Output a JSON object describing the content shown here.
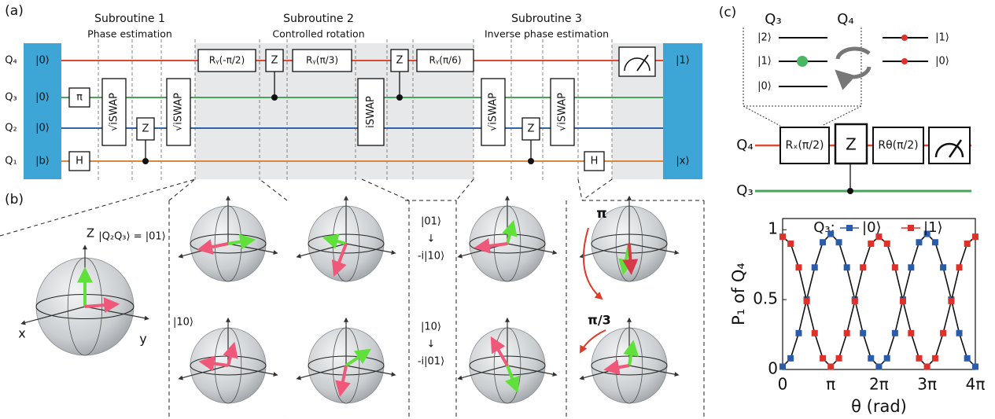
{
  "panel_a": {
    "label": "(a)",
    "subroutines": [
      {
        "title": "Subroutine 1",
        "subtitle": "Phase estimation"
      },
      {
        "title": "Subroutine 2",
        "subtitle": "Controlled rotation"
      },
      {
        "title": "Subroutine 3",
        "subtitle": "Inverse phase estimation"
      }
    ],
    "qubits": [
      "Q₄",
      "Q₃",
      "Q₂",
      "Q₁"
    ],
    "inputs": [
      "|0⟩",
      "|0⟩",
      "|0⟩",
      "|b⟩"
    ],
    "outputs": [
      "|1⟩",
      "|x⟩"
    ],
    "gates": [
      "π",
      "H",
      "√iSWAP",
      "Z",
      "√iSWAP",
      "Rᵧ(-π/2)",
      "Z",
      "Rᵧ(π/3)",
      "iSWAP",
      "Z",
      "Rᵧ(π/6)",
      "√iSWAP",
      "Z",
      "√iSWAP",
      "H"
    ]
  },
  "panel_b": {
    "label": "(b)",
    "axis_z": "Z",
    "axis_x": "x",
    "axis_y": "y",
    "state_top": "|Q₂Q₃⟩ = |01⟩",
    "state_bottom": "|10⟩",
    "swap_top": [
      "|01⟩",
      "↓",
      "-i|10⟩"
    ],
    "swap_bottom": [
      "|10⟩",
      "↓",
      "-i|01⟩"
    ],
    "angle_top": "π",
    "angle_bottom": "π/3"
  },
  "panel_c": {
    "label": "(c)",
    "level_diagram": {
      "q3": "Q₃",
      "q4": "Q₄",
      "q3_levels": [
        "|2⟩",
        "|1⟩",
        "|0⟩"
      ],
      "q4_levels": [
        "|1⟩",
        "|0⟩"
      ]
    },
    "circuit": {
      "qubits": [
        "Q₄",
        "Q₃"
      ],
      "gates": [
        "Rₓ(π/2)",
        "Z",
        "Rθ(π/2)"
      ]
    }
  },
  "chart_data": {
    "type": "scatter",
    "xlabel": "θ (rad)",
    "ylabel": "P₁ of Q₄",
    "legend_title": "Q₃:",
    "x": [
      0,
      0.52,
      1.05,
      1.57,
      2.09,
      2.62,
      3.14,
      3.67,
      4.19,
      4.71,
      5.24,
      5.76,
      6.28,
      6.81,
      7.33,
      7.85,
      8.38,
      8.9,
      9.42,
      9.95,
      10.47,
      11.0,
      11.52,
      12.04,
      12.57
    ],
    "series": [
      {
        "name": "|0⟩",
        "color": "#2a5caa",
        "values": [
          0.02,
          0.08,
          0.26,
          0.5,
          0.73,
          0.91,
          0.97,
          0.91,
          0.73,
          0.5,
          0.26,
          0.08,
          0.02,
          0.08,
          0.26,
          0.5,
          0.73,
          0.91,
          0.97,
          0.91,
          0.73,
          0.5,
          0.26,
          0.08,
          0.02
        ]
      },
      {
        "name": "|1⟩",
        "color": "#e0302a",
        "values": [
          0.95,
          0.9,
          0.73,
          0.49,
          0.26,
          0.08,
          0.02,
          0.08,
          0.26,
          0.49,
          0.73,
          0.9,
          0.95,
          0.9,
          0.73,
          0.49,
          0.26,
          0.08,
          0.02,
          0.08,
          0.26,
          0.49,
          0.73,
          0.9,
          0.95
        ]
      }
    ],
    "xlim": [
      0,
      12.57
    ],
    "ylim": [
      0,
      1.08
    ],
    "xticks": [
      0,
      {
        "value": 3.14,
        "label": "π"
      },
      {
        "value": 6.28,
        "label": "2π"
      },
      {
        "value": 9.42,
        "label": "3π"
      },
      {
        "value": 12.57,
        "label": "4π"
      }
    ],
    "yticks": [
      0,
      0.5,
      1
    ]
  }
}
